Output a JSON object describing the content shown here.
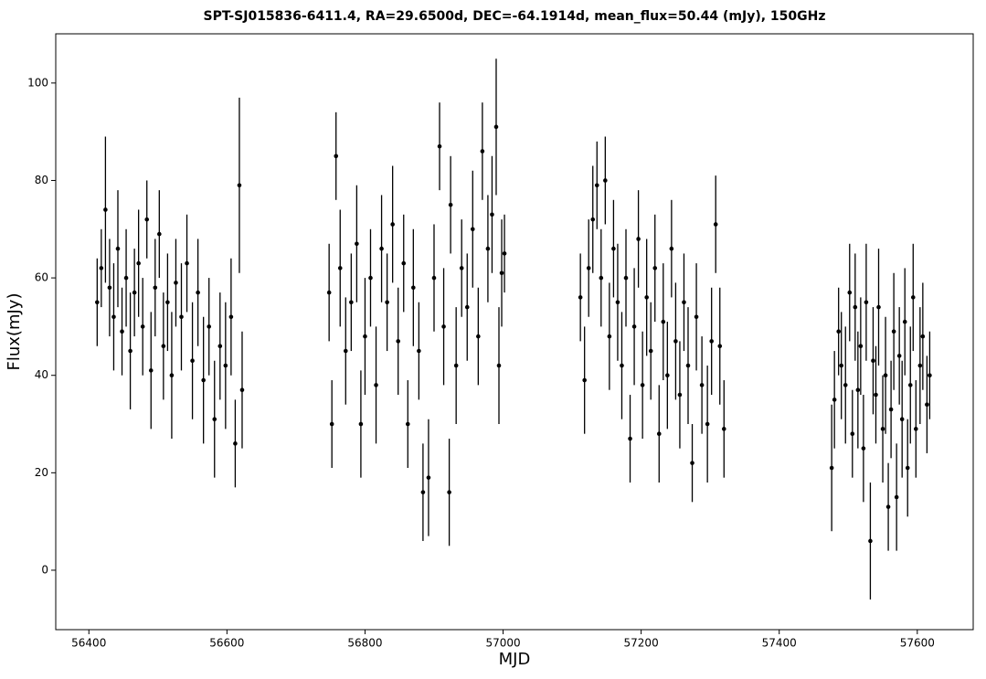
{
  "chart_data": {
    "type": "errorbar",
    "title": "SPT-SJ015836-6411.4, RA=29.6500d, DEC=-64.1914d, mean_flux=50.44 (mJy), 150GHz",
    "x_label": "MJD",
    "y_label": "Flux(mJy)",
    "color": "#000000",
    "xlim": [
      56352,
      57681
    ],
    "ylim": [
      -12.2,
      110.1
    ],
    "xticks": [
      56400,
      56600,
      56800,
      57000,
      57200,
      57400,
      57600
    ],
    "yticks": [
      0,
      20,
      40,
      60,
      80,
      100
    ],
    "x": [
      56412,
      56418,
      56424,
      56430,
      56436,
      56442,
      56448,
      56454,
      56460,
      56466,
      56472,
      56478,
      56484,
      56490,
      56496,
      56502,
      56508,
      56514,
      56520,
      56526,
      56534,
      56542,
      56550,
      56558,
      56566,
      56574,
      56582,
      56590,
      56598,
      56606,
      56612,
      56618,
      56622,
      56748,
      56752,
      56758,
      56764,
      56772,
      56780,
      56788,
      56794,
      56800,
      56808,
      56816,
      56824,
      56832,
      56840,
      56848,
      56856,
      56862,
      56870,
      56878,
      56884,
      56892,
      56900,
      56908,
      56914,
      56922,
      56924,
      56932,
      56940,
      56948,
      56956,
      56964,
      56970,
      56978,
      56984,
      56990,
      56994,
      56998,
      57002,
      57112,
      57118,
      57124,
      57130,
      57136,
      57142,
      57148,
      57154,
      57160,
      57166,
      57172,
      57178,
      57184,
      57190,
      57196,
      57202,
      57208,
      57214,
      57220,
      57226,
      57232,
      57238,
      57244,
      57250,
      57256,
      57262,
      57268,
      57274,
      57280,
      57288,
      57296,
      57302,
      57308,
      57314,
      57320,
      57476,
      57480,
      57486,
      57490,
      57496,
      57502,
      57506,
      57510,
      57514,
      57518,
      57522,
      57526,
      57532,
      57536,
      57540,
      57544,
      57550,
      57554,
      57558,
      57562,
      57566,
      57570,
      57574,
      57578,
      57582,
      57586,
      57590,
      57594,
      57598,
      57604,
      57608,
      57614,
      57618
    ],
    "values": [
      55,
      62,
      74,
      58,
      52,
      66,
      49,
      60,
      45,
      57,
      63,
      50,
      72,
      41,
      58,
      69,
      46,
      55,
      40,
      59,
      52,
      63,
      43,
      57,
      39,
      50,
      31,
      46,
      42,
      52,
      26,
      79,
      37,
      57,
      30,
      85,
      62,
      45,
      55,
      67,
      30,
      48,
      60,
      38,
      66,
      55,
      71,
      47,
      63,
      30,
      58,
      45,
      16,
      19,
      60,
      87,
      50,
      16,
      75,
      42,
      62,
      54,
      70,
      48,
      86,
      66,
      73,
      91,
      42,
      61,
      65,
      56,
      39,
      62,
      72,
      79,
      60,
      80,
      48,
      66,
      55,
      42,
      60,
      27,
      50,
      68,
      38,
      56,
      45,
      62,
      28,
      51,
      40,
      66,
      47,
      36,
      55,
      42,
      22,
      52,
      38,
      30,
      47,
      71,
      46,
      29,
      21,
      35,
      49,
      42,
      38,
      57,
      28,
      54,
      37,
      46,
      25,
      55,
      6,
      43,
      36,
      54,
      29,
      40,
      13,
      33,
      49,
      15,
      44,
      31,
      51,
      21,
      38,
      56,
      29,
      42,
      48,
      34,
      40
    ],
    "errors": [
      9,
      8,
      15,
      10,
      11,
      12,
      9,
      10,
      12,
      9,
      11,
      10,
      8,
      12,
      10,
      9,
      11,
      10,
      13,
      9,
      11,
      10,
      12,
      11,
      13,
      10,
      12,
      11,
      13,
      12,
      9,
      18,
      12,
      10,
      9,
      9,
      12,
      11,
      10,
      12,
      11,
      12,
      10,
      12,
      11,
      10,
      12,
      11,
      10,
      9,
      12,
      10,
      10,
      12,
      11,
      9,
      12,
      11,
      10,
      12,
      10,
      11,
      12,
      10,
      10,
      11,
      12,
      14,
      12,
      11,
      8,
      9,
      11,
      10,
      11,
      9,
      10,
      9,
      11,
      10,
      12,
      11,
      10,
      9,
      12,
      10,
      11,
      12,
      10,
      11,
      10,
      12,
      11,
      10,
      12,
      11,
      10,
      12,
      8,
      11,
      10,
      12,
      11,
      10,
      12,
      10,
      13,
      10,
      9,
      11,
      12,
      10,
      9,
      11,
      12,
      10,
      11,
      12,
      12,
      11,
      10,
      12,
      11,
      12,
      9,
      10,
      12,
      11,
      10,
      12,
      11,
      10,
      12,
      11,
      10,
      12,
      11,
      10,
      9
    ]
  }
}
